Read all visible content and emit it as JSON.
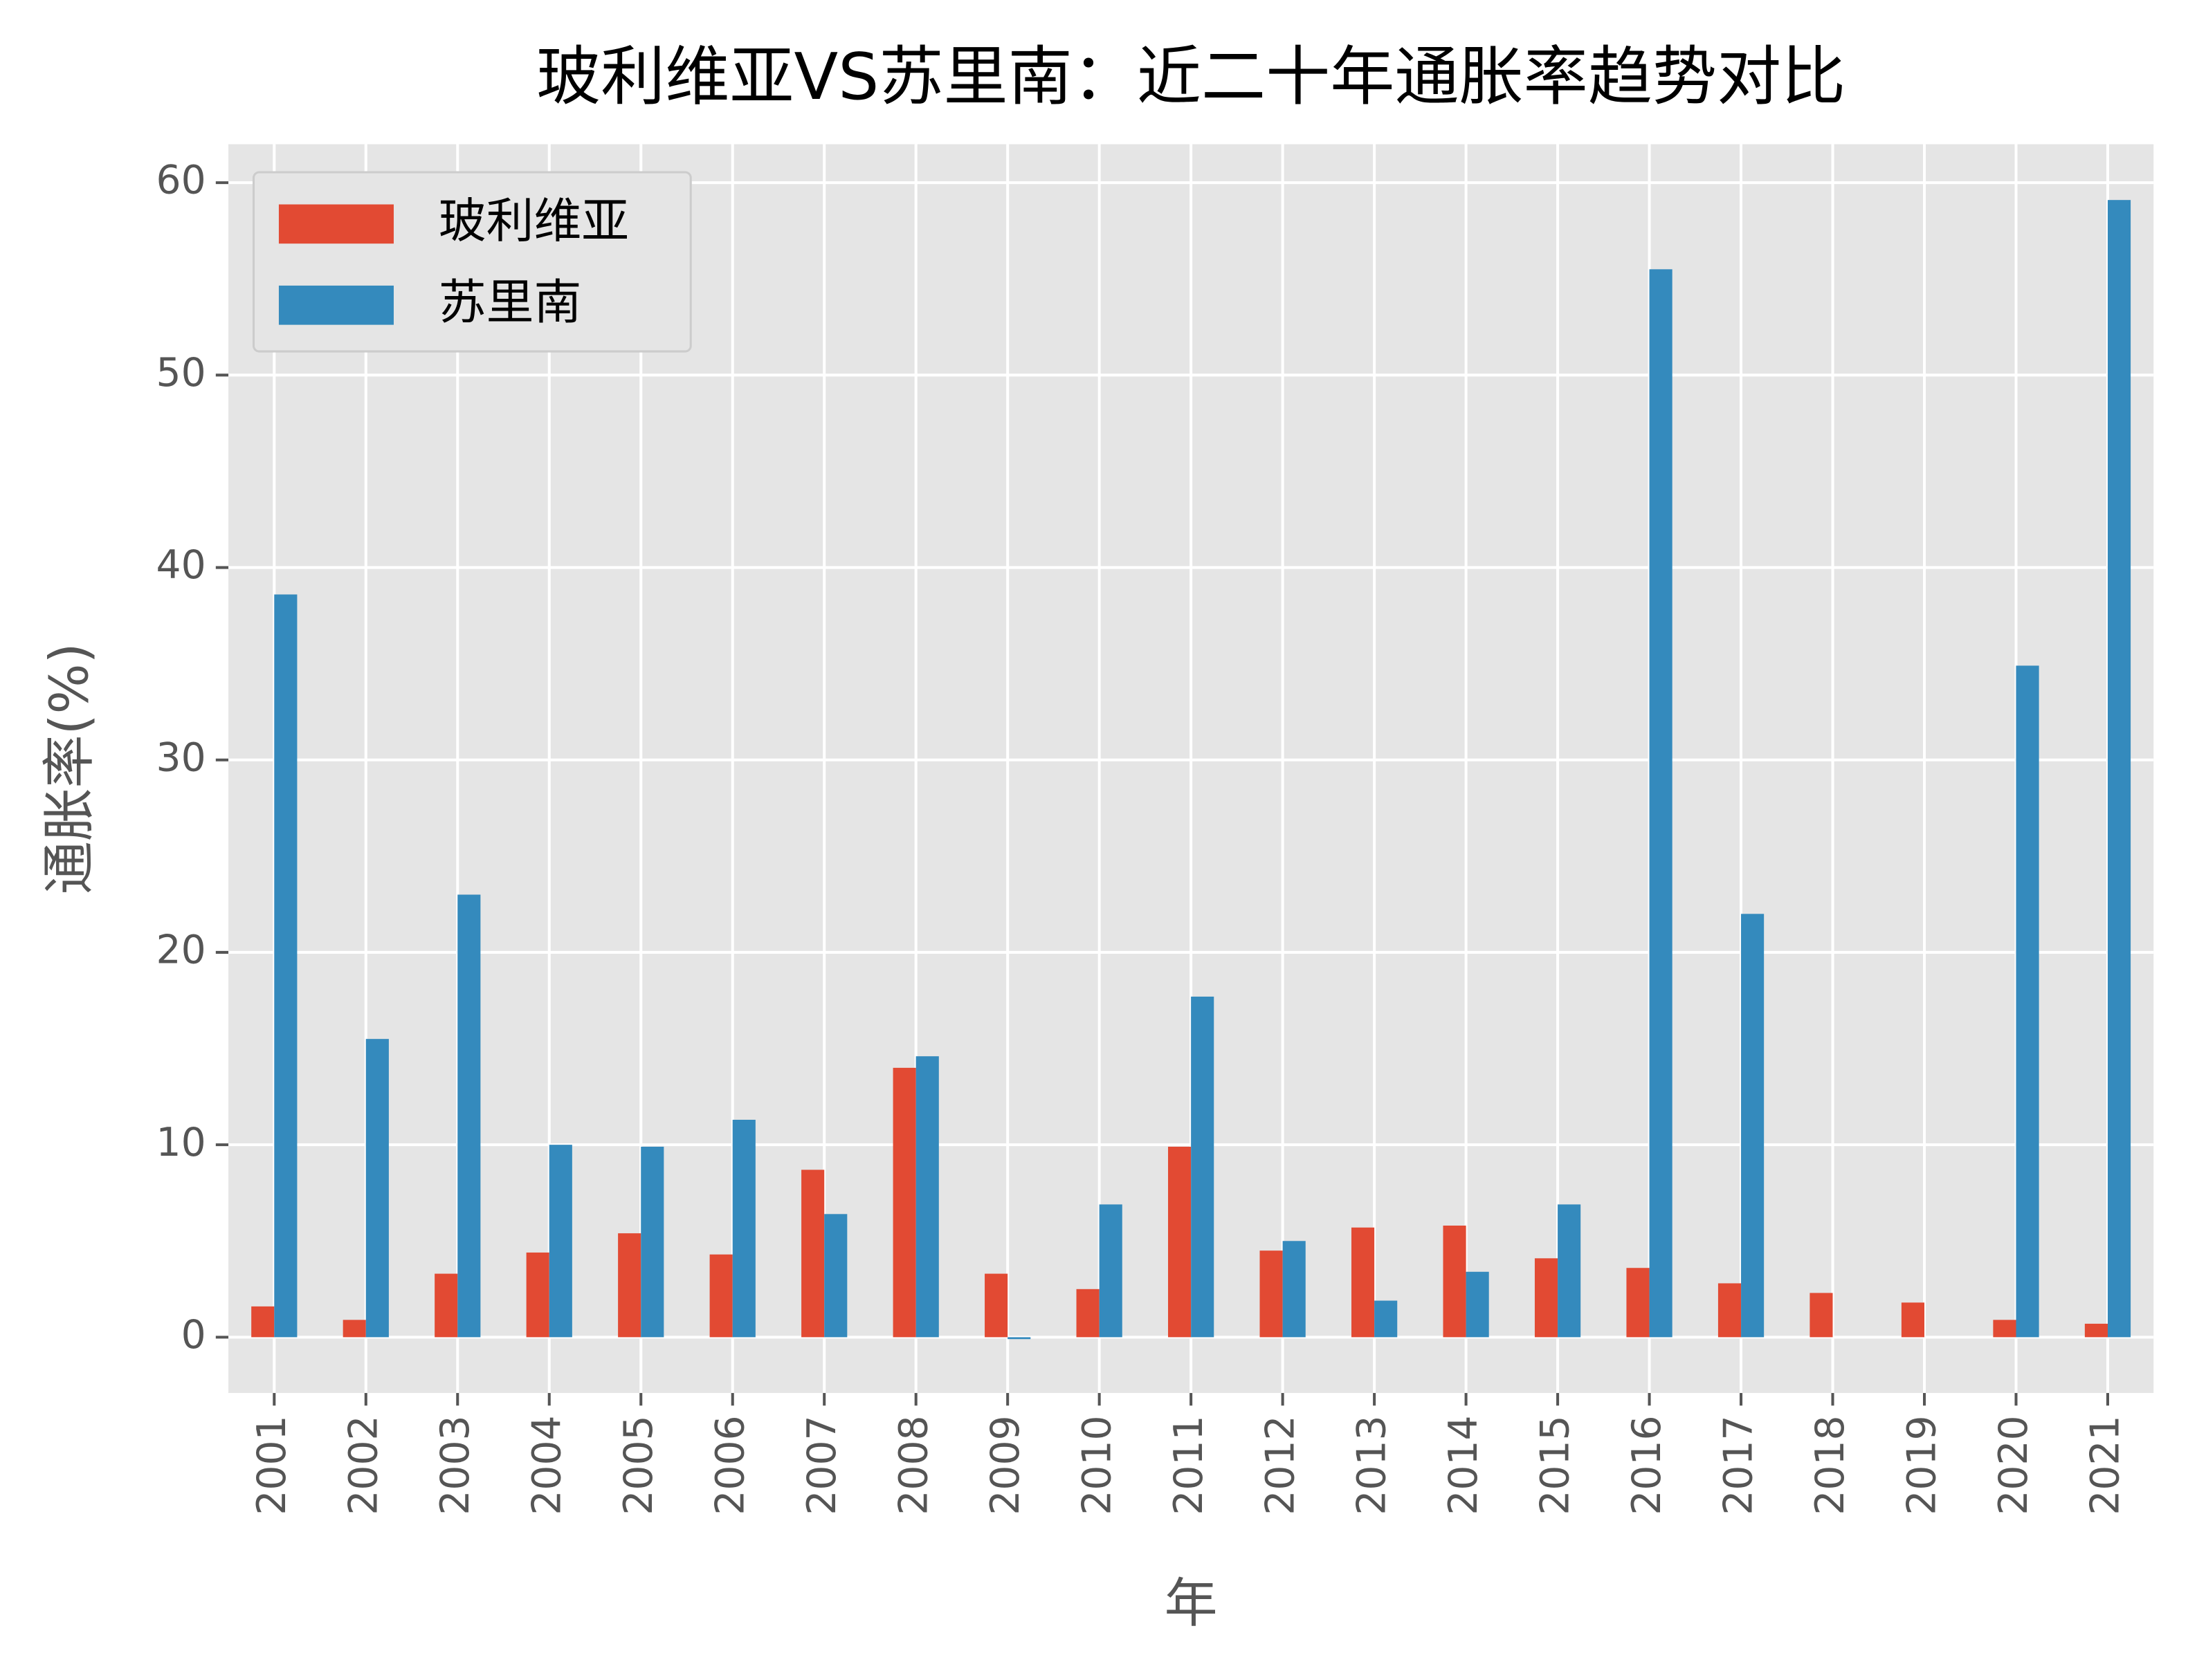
{
  "chart_data": {
    "type": "bar",
    "title": "玻利维亚VS苏里南：近二十年通胀率趋势对比",
    "xlabel": "年",
    "ylabel": "通胀率(%)",
    "categories": [
      "2001",
      "2002",
      "2003",
      "2004",
      "2005",
      "2006",
      "2007",
      "2008",
      "2009",
      "2010",
      "2011",
      "2012",
      "2013",
      "2014",
      "2015",
      "2016",
      "2017",
      "2018",
      "2019",
      "2020",
      "2021"
    ],
    "series": [
      {
        "name": "玻利维亚",
        "color": "#e24a33",
        "values": [
          1.6,
          0.9,
          3.3,
          4.4,
          5.4,
          4.3,
          8.7,
          14.0,
          3.3,
          2.5,
          9.9,
          4.5,
          5.7,
          5.8,
          4.1,
          3.6,
          2.8,
          2.3,
          1.8,
          0.9,
          0.7
        ]
      },
      {
        "name": "苏里南",
        "color": "#348abd",
        "values": [
          38.6,
          15.5,
          23.0,
          10.0,
          9.9,
          11.3,
          6.4,
          14.6,
          -0.1,
          6.9,
          17.7,
          5.0,
          1.9,
          3.4,
          6.9,
          55.5,
          22.0,
          null,
          null,
          34.9,
          59.1
        ]
      }
    ],
    "ylim": [
      -2.9,
      62.0
    ],
    "yticks": [
      0,
      10,
      20,
      30,
      40,
      50,
      60
    ],
    "grid": true,
    "legend": "upper left"
  }
}
